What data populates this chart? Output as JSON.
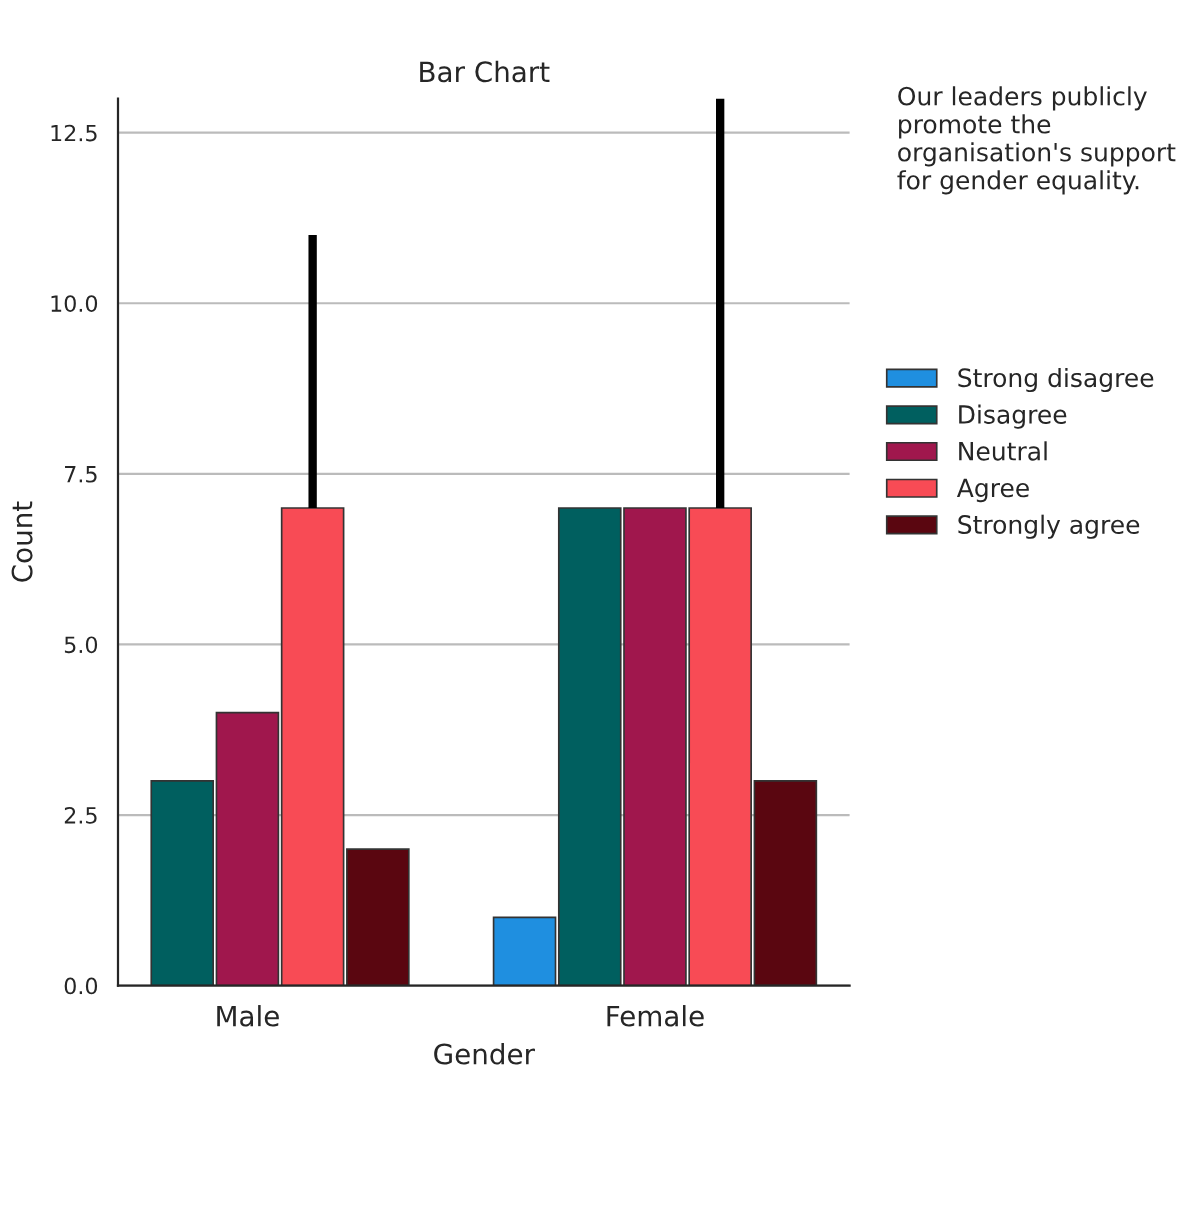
{
  "chart_data": {
    "type": "bar",
    "title": "Bar Chart",
    "xlabel": "Gender",
    "ylabel": "Count",
    "legend_title": "Our leaders publicly promote the organisation's support for gender equality.",
    "categories": [
      "Male",
      "Female"
    ],
    "series": [
      {
        "name": "Strong disagree",
        "color": "#1f8fe0",
        "values": [
          null,
          1
        ]
      },
      {
        "name": "Disagree",
        "color": "#005f5f",
        "values": [
          3,
          7
        ]
      },
      {
        "name": "Neutral",
        "color": "#a0174d",
        "values": [
          4,
          7
        ]
      },
      {
        "name": "Agree",
        "color": "#f84b55",
        "values": [
          7,
          7
        ],
        "errors": [
          [
            7,
            11
          ],
          [
            7,
            13
          ]
        ]
      },
      {
        "name": "Strongly agree",
        "color": "#5a0610",
        "values": [
          2,
          3
        ]
      }
    ],
    "ylim": [
      0,
      13
    ],
    "yticks": [
      {
        "value": 0,
        "label": "0.0"
      },
      {
        "value": 2.5,
        "label": "2.5"
      },
      {
        "value": 5,
        "label": "5.0"
      },
      {
        "value": 7.5,
        "label": "7.5"
      },
      {
        "value": 10,
        "label": "10.0"
      },
      {
        "value": 12.5,
        "label": "12.5"
      }
    ],
    "grid": "y",
    "legend": "right"
  }
}
